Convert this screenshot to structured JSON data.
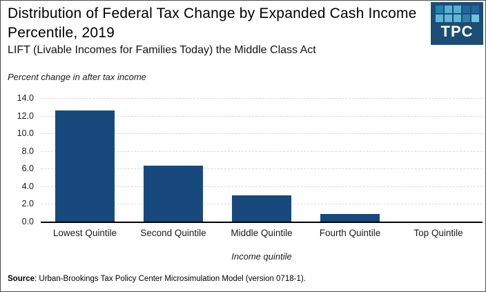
{
  "header": {
    "title": "Distribution of Federal Tax Change by Expanded Cash Income Percentile, 2019",
    "subtitle": "LIFT (Livable Incomes for Families Today) the Middle Class Act",
    "logo": {
      "text": "TPC",
      "background": "#1D4D74",
      "square_rows": [
        [
          "#1E86AE",
          "#57B0D4",
          "#57B0D4",
          "#24659B",
          "#24659B"
        ],
        [
          "#61B6D8",
          "#61B6D8",
          "#61B6D8",
          "#2E81AB",
          "#6CC3E0"
        ]
      ]
    }
  },
  "chart_data": {
    "type": "bar",
    "categories": [
      "Lowest Quintile",
      "Second Quintile",
      "Middle Quintile",
      "Fourth Quintile",
      "Top Quintile"
    ],
    "values": [
      12.6,
      6.3,
      3.0,
      0.9,
      0.0
    ],
    "ylabel": "Percent change in after tax income",
    "xlabel": "Income quintile",
    "ylim": [
      0,
      14
    ],
    "ytick_step": 2,
    "ytick_labels": [
      "0.0",
      "2.0",
      "4.0",
      "6.0",
      "8.0",
      "10.0",
      "12.0",
      "14.0"
    ],
    "bar_color": "#17497D",
    "gridline_color": "#D9D9D9",
    "grid": "horizontal-dashed",
    "legend": "none"
  },
  "footer": {
    "source_label": "Source",
    "source_text": ": Urban-Brookings Tax Policy Center Microsimulation Model (version 0718-1)."
  }
}
